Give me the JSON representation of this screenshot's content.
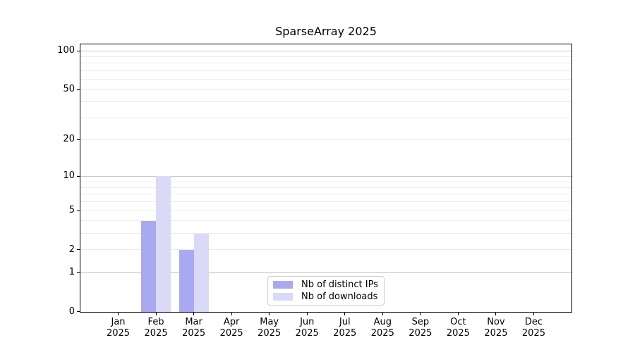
{
  "figure": {
    "background": "#ffffff"
  },
  "chart_data": {
    "type": "bar",
    "title": "SparseArray 2025",
    "x_axis": {
      "categories": [
        "Jan",
        "Feb",
        "Mar",
        "Apr",
        "May",
        "Jun",
        "Jul",
        "Aug",
        "Sep",
        "Oct",
        "Nov",
        "Dec"
      ],
      "year_label": "2025"
    },
    "y_axis": {
      "scale": "log10(value+1)",
      "ticks": [
        0,
        1,
        2,
        5,
        10,
        20,
        50,
        100
      ],
      "range": [
        0,
        113
      ],
      "gridlines_major": [
        1,
        10,
        100
      ],
      "gridlines_minor": [
        2,
        3,
        4,
        5,
        6,
        7,
        8,
        9,
        20,
        30,
        40,
        50,
        60,
        70,
        80,
        90
      ],
      "gridline_major_color": "#c4c4c4",
      "gridline_minor_color": "#ebebeb"
    },
    "series": [
      {
        "name": "Nb of distinct IPs",
        "color": "#a9a9f1",
        "values": [
          0,
          4,
          2,
          0,
          0,
          0,
          0,
          0,
          0,
          0,
          0,
          0
        ]
      },
      {
        "name": "Nb of downloads",
        "color": "#dadaf8",
        "values": [
          0,
          10,
          3,
          0,
          0,
          0,
          0,
          0,
          0,
          0,
          0,
          0
        ]
      }
    ],
    "legend": {
      "position": "bottom-center",
      "border_color": "#cccccc"
    }
  }
}
